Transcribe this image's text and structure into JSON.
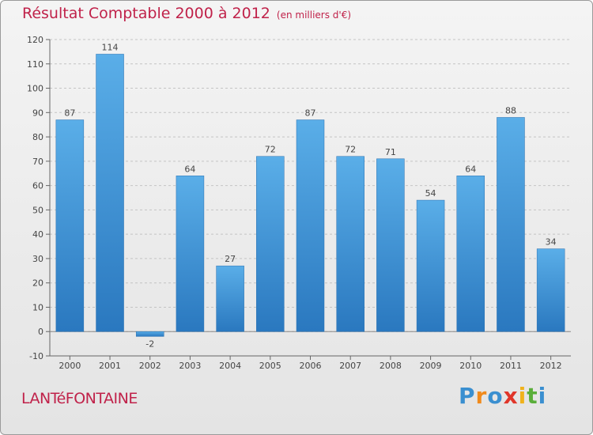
{
  "header": {
    "title": "Résultat Comptable 2000 à 2012",
    "subtitle": "(en milliers d'€)"
  },
  "footer": {
    "commune": "LANTéFONTAINE",
    "logo_letters": [
      "P",
      "r",
      "o",
      "x",
      "i",
      "t",
      "i"
    ],
    "logo_colors": [
      "#3a8fd0",
      "#f08a1c",
      "#3a8fd0",
      "#e0362a",
      "#f0b21c",
      "#5aae3a",
      "#3a8fd0"
    ]
  },
  "chart_data": {
    "type": "bar",
    "title": "Résultat Comptable 2000 à 2012",
    "subtitle": "(en milliers d'€)",
    "categories": [
      "2000",
      "2001",
      "2002",
      "2003",
      "2004",
      "2005",
      "2006",
      "2007",
      "2008",
      "2009",
      "2010",
      "2011",
      "2012"
    ],
    "values": [
      87,
      114,
      -2,
      64,
      27,
      72,
      87,
      72,
      71,
      54,
      64,
      88,
      34
    ],
    "ylim": [
      -10,
      120
    ],
    "yticks": [
      -10,
      0,
      10,
      20,
      30,
      40,
      50,
      60,
      70,
      80,
      90,
      100,
      110,
      120
    ],
    "grid": "horizontal dashed",
    "bar_color": "#4a9fdf",
    "bar_color_dark": "#2a78bf"
  }
}
